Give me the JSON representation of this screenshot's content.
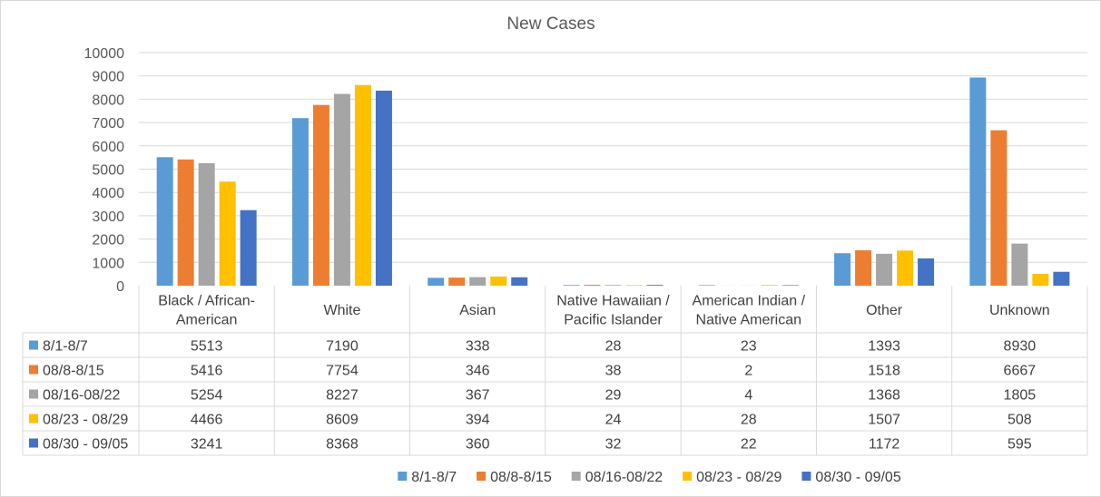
{
  "chart_data": {
    "type": "bar",
    "title": "New Cases",
    "categories": [
      [
        "Black / African-",
        "American"
      ],
      [
        "White"
      ],
      [
        "Asian"
      ],
      [
        "Native Hawaiian /",
        "Pacific Islander"
      ],
      [
        "American Indian /",
        "Native American"
      ],
      [
        "Other"
      ],
      [
        "Unknown"
      ]
    ],
    "series": [
      {
        "name": "8/1-8/7",
        "color": "#5b9bd5",
        "values": [
          5513,
          7190,
          338,
          28,
          23,
          1393,
          8930
        ]
      },
      {
        "name": "08/8-8/15",
        "color": "#ed7d31",
        "values": [
          5416,
          7754,
          346,
          38,
          2,
          1518,
          6667
        ]
      },
      {
        "name": "08/16-08/22",
        "color": "#a5a5a5",
        "values": [
          5254,
          8227,
          367,
          29,
          4,
          1368,
          1805
        ]
      },
      {
        "name": "08/23 - 08/29",
        "color": "#ffc000",
        "values": [
          4466,
          8609,
          394,
          24,
          28,
          1507,
          508
        ]
      },
      {
        "name": "08/30 - 09/05",
        "color": "#4472c4",
        "values": [
          3241,
          8368,
          360,
          32,
          22,
          1172,
          595
        ]
      }
    ],
    "ylim": [
      0,
      10000
    ],
    "yticks": [
      0,
      1000,
      2000,
      3000,
      4000,
      5000,
      6000,
      7000,
      8000,
      9000,
      10000
    ],
    "grid": true,
    "legend_position": "bottom",
    "data_table": true
  }
}
